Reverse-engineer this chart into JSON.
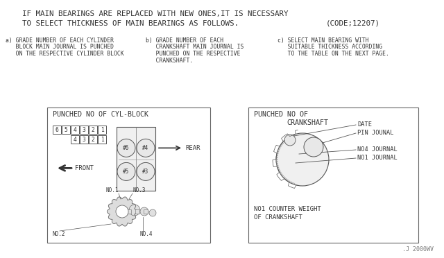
{
  "bg_color": "#ffffff",
  "title_line1": "IF MAIN BEARINGS ARE REPLACED WITH NEW ONES,IT IS NECESSARY",
  "title_line2": "TO SELECT THICKNESS OF MAIN BEARINGS AS FOLLOWS.",
  "title_code": "(CODE;12207)",
  "note_a1": "a) GRADE NUMBER OF EACH CYLINDER",
  "note_a2": "   BLOCK MAIN JOURNAL IS PUNCHED",
  "note_a3": "   ON THE RESPECTIVE CYLINDER BLOCK",
  "note_b1": "b) GRADE NUMBER OF EACH",
  "note_b2": "   CRANKSHAFT MAIN JOURNAL IS",
  "note_b3": "   PUNCHED ON THE RESPECTIVE",
  "note_b4": "   CRANKSHAFT.",
  "note_c1": "c) SELECT MAIN BEARING WITH",
  "note_c2": "   SUITABLE THICKNESS ACCORDING",
  "note_c3": "   TO THE TABLE ON THE NEXT PAGE.",
  "box1_title": "PUNCHED NO OF CYL-BLOCK",
  "box2_title1": "PUNCHED NO OF",
  "box2_title2": "CRANKSHAFT",
  "nums_row1": [
    "6",
    "5",
    "4",
    "3",
    "2",
    "1"
  ],
  "nums_row2": [
    "4",
    "3",
    "2",
    "1"
  ],
  "rear_label": "REAR",
  "front_label": "FRONT",
  "no1_label": "NO.1",
  "no2_label": "NO.2",
  "no3_label": "NO.3",
  "no4_label": "NO.4",
  "date_label": "DATE",
  "pin_label": "PIN JOUNAL",
  "no4j_label": "NO4 JOURNAL",
  "no1j_label": "NO1 JOURNAL",
  "cw1_label": "NO1 COUNTER WEIGHT",
  "cw2_label": "OF CRANKSHAFT",
  "watermark": ".J 2000WV"
}
